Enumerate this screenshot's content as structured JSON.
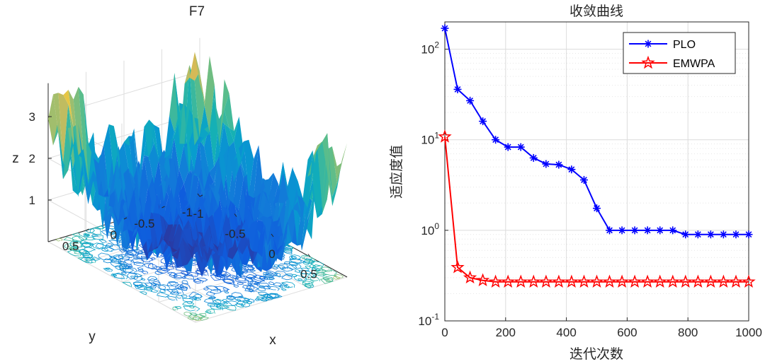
{
  "chart_data": [
    {
      "type": "surface",
      "title": "F7",
      "xlabel": "x",
      "ylabel": "y",
      "zlabel": "z",
      "xlim": [
        -1,
        1
      ],
      "ylim": [
        -1,
        1
      ],
      "zlim": [
        0,
        3.5
      ],
      "x_ticks": [
        "-1",
        "-0.5",
        "0",
        "0.5"
      ],
      "y_ticks": [
        "0.5",
        "0",
        "-0.5",
        "-1"
      ],
      "z_ticks": [
        "1",
        "2",
        "3"
      ],
      "colormap": "parula",
      "contour_projection": true
    },
    {
      "type": "line",
      "title": "收敛曲线",
      "xlabel": "迭代次数",
      "ylabel": "适应度值",
      "yscale": "log",
      "xlim": [
        0,
        1000
      ],
      "ylim": [
        0.1,
        200
      ],
      "x_ticks": [
        "0",
        "200",
        "400",
        "600",
        "800",
        "1000"
      ],
      "y_ticks": [
        {
          "base": "10",
          "exp": "-1",
          "value": 0.1
        },
        {
          "base": "10",
          "exp": "0",
          "value": 1
        },
        {
          "base": "10",
          "exp": "1",
          "value": 10
        },
        {
          "base": "10",
          "exp": "2",
          "value": 100
        }
      ],
      "grid": true,
      "legend_position": "top-right",
      "series": [
        {
          "name": "PLO",
          "color": "#0000ff",
          "marker": "asterisk",
          "x": [
            0,
            42,
            83,
            125,
            167,
            208,
            250,
            292,
            333,
            375,
            417,
            458,
            500,
            542,
            583,
            625,
            667,
            708,
            750,
            792,
            833,
            875,
            917,
            958,
            1000
          ],
          "y": [
            170,
            36,
            27,
            16,
            10,
            8.3,
            8.3,
            6.3,
            5.4,
            5.3,
            4.7,
            3.6,
            1.75,
            1.0,
            1.0,
            1.0,
            1.0,
            1.0,
            1.0,
            0.9,
            0.9,
            0.9,
            0.9,
            0.9,
            0.9
          ]
        },
        {
          "name": "EMWPA",
          "color": "#ff0000",
          "marker": "pentagram",
          "x": [
            0,
            42,
            83,
            125,
            167,
            208,
            250,
            292,
            333,
            375,
            417,
            458,
            500,
            542,
            583,
            625,
            667,
            708,
            750,
            792,
            833,
            875,
            917,
            958,
            1000
          ],
          "y": [
            10.8,
            0.39,
            0.3,
            0.28,
            0.27,
            0.27,
            0.27,
            0.27,
            0.27,
            0.27,
            0.27,
            0.27,
            0.27,
            0.27,
            0.27,
            0.27,
            0.27,
            0.27,
            0.27,
            0.27,
            0.27,
            0.27,
            0.27,
            0.27,
            0.27
          ]
        }
      ]
    }
  ]
}
